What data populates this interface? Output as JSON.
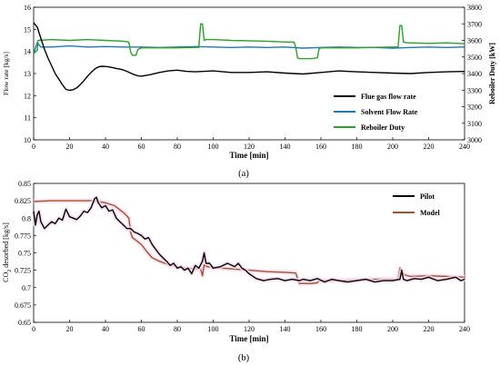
{
  "chart_data": [
    {
      "type": "line",
      "panel_label": "(a)",
      "xlabel": "Time [min]",
      "ylabel": "Flow rate [kg/s]",
      "y2label": "Reboiler Duty [kW]",
      "xlim": [
        0,
        240
      ],
      "ylim": [
        10,
        16
      ],
      "y2lim": [
        3000,
        3800
      ],
      "x_ticks": [
        0,
        20,
        40,
        60,
        80,
        100,
        120,
        140,
        160,
        180,
        200,
        220,
        240
      ],
      "y_ticks": [
        10,
        11,
        12,
        13,
        14,
        15,
        16
      ],
      "y2_ticks": [
        3000,
        3100,
        3200,
        3300,
        3400,
        3500,
        3600,
        3700,
        3800
      ],
      "legend_position": "right",
      "grid": false,
      "series": [
        {
          "name": "Flue gas flow rate",
          "color": "#000000",
          "axis": "left",
          "x": [
            0,
            2,
            4,
            6,
            8,
            10,
            12,
            14,
            16,
            18,
            20,
            22,
            24,
            26,
            28,
            30,
            32,
            34,
            36,
            38,
            40,
            42,
            44,
            46,
            48,
            50,
            52,
            54,
            56,
            58,
            60,
            65,
            70,
            75,
            80,
            85,
            90,
            100,
            110,
            120,
            130,
            140,
            150,
            160,
            170,
            180,
            190,
            200,
            210,
            220,
            230,
            240
          ],
          "y": [
            15.3,
            15.1,
            14.6,
            14.1,
            13.7,
            13.35,
            13.0,
            12.75,
            12.5,
            12.28,
            12.24,
            12.27,
            12.35,
            12.5,
            12.68,
            12.88,
            13.05,
            13.2,
            13.3,
            13.33,
            13.32,
            13.3,
            13.27,
            13.23,
            13.2,
            13.16,
            13.1,
            13.02,
            12.95,
            12.9,
            12.88,
            12.95,
            13.05,
            13.12,
            13.15,
            13.1,
            13.08,
            13.12,
            13.05,
            13.05,
            13.08,
            13.02,
            12.98,
            13.05,
            13.12,
            13.08,
            13.05,
            13.02,
            13.0,
            13.05,
            13.08,
            13.1
          ]
        },
        {
          "name": "Solvent Flow Rate",
          "color": "#1f77b4",
          "axis": "left",
          "x": [
            0,
            2,
            4,
            10,
            20,
            30,
            40,
            50,
            60,
            70,
            80,
            90,
            100,
            110,
            120,
            130,
            140,
            150,
            160,
            170,
            180,
            190,
            200,
            210,
            220,
            230,
            240
          ],
          "y": [
            13.9,
            14.4,
            14.2,
            14.2,
            14.25,
            14.2,
            14.22,
            14.2,
            14.2,
            14.18,
            14.2,
            14.22,
            14.2,
            14.18,
            14.2,
            14.18,
            14.2,
            14.15,
            14.18,
            14.2,
            14.18,
            14.18,
            14.15,
            14.18,
            14.2,
            14.18,
            14.2
          ]
        },
        {
          "name": "Reboiler Duty",
          "color": "#2ca02c",
          "axis": "right",
          "x": [
            0,
            2,
            2.5,
            10,
            20,
            30,
            40,
            50,
            53,
            54,
            55,
            57,
            58,
            60,
            70,
            80,
            90,
            92,
            93,
            94,
            95,
            96,
            100,
            110,
            120,
            130,
            140,
            145,
            146,
            147,
            148,
            155,
            158,
            159,
            160,
            170,
            180,
            190,
            200,
            203,
            204,
            205,
            206,
            208,
            210,
            220,
            230,
            240
          ],
          "y": [
            3520,
            3540,
            3600,
            3605,
            3600,
            3605,
            3600,
            3595,
            3590,
            3530,
            3510,
            3510,
            3545,
            3555,
            3555,
            3555,
            3558,
            3558,
            3700,
            3700,
            3600,
            3605,
            3605,
            3600,
            3598,
            3595,
            3590,
            3590,
            3560,
            3495,
            3490,
            3490,
            3495,
            3550,
            3555,
            3555,
            3555,
            3558,
            3560,
            3560,
            3690,
            3690,
            3590,
            3585,
            3585,
            3582,
            3585,
            3580
          ]
        }
      ]
    },
    {
      "type": "line",
      "panel_label": "(b)",
      "xlabel": "Time [min]",
      "ylabel_main": "CO",
      "ylabel_sub": "2",
      "ylabel_rest": " desorbed [kg/s]",
      "xlim": [
        0,
        240
      ],
      "ylim": [
        0.65,
        0.85
      ],
      "x_ticks": [
        0,
        20,
        40,
        60,
        80,
        100,
        120,
        140,
        160,
        180,
        200,
        220,
        240
      ],
      "y_ticks": [
        "0.65",
        "0.675",
        "0.7",
        "0.725",
        "0.75",
        "0.775",
        "0.8",
        "0.825",
        "0.85"
      ],
      "legend_position": "top-right",
      "grid": false,
      "series": [
        {
          "name": "Pilot",
          "color": "#000000",
          "x": [
            0,
            1,
            2,
            3,
            4,
            5,
            6,
            8,
            10,
            12,
            14,
            16,
            18,
            20,
            22,
            24,
            26,
            28,
            30,
            32,
            34,
            35,
            36,
            38,
            40,
            42,
            44,
            46,
            48,
            50,
            52,
            54,
            56,
            58,
            60,
            62,
            64,
            66,
            68,
            70,
            72,
            74,
            76,
            78,
            80,
            82,
            84,
            86,
            88,
            90,
            92,
            94,
            95,
            96,
            98,
            100,
            104,
            108,
            112,
            114,
            116,
            118,
            120,
            124,
            128,
            132,
            136,
            140,
            144,
            148,
            150,
            154,
            158,
            162,
            166,
            170,
            175,
            180,
            185,
            190,
            195,
            200,
            204,
            205,
            206,
            208,
            212,
            216,
            220,
            225,
            230,
            235,
            238,
            240
          ],
          "y": [
            0.81,
            0.79,
            0.805,
            0.81,
            0.795,
            0.79,
            0.785,
            0.79,
            0.795,
            0.792,
            0.8,
            0.797,
            0.813,
            0.802,
            0.8,
            0.798,
            0.803,
            0.81,
            0.808,
            0.815,
            0.828,
            0.83,
            0.822,
            0.815,
            0.818,
            0.81,
            0.812,
            0.8,
            0.795,
            0.79,
            0.785,
            0.785,
            0.78,
            0.778,
            0.775,
            0.77,
            0.772,
            0.762,
            0.755,
            0.748,
            0.743,
            0.738,
            0.732,
            0.735,
            0.728,
            0.73,
            0.725,
            0.728,
            0.72,
            0.732,
            0.728,
            0.738,
            0.75,
            0.735,
            0.735,
            0.728,
            0.73,
            0.735,
            0.73,
            0.735,
            0.728,
            0.725,
            0.72,
            0.713,
            0.71,
            0.712,
            0.713,
            0.71,
            0.712,
            0.71,
            0.712,
            0.71,
            0.713,
            0.708,
            0.712,
            0.71,
            0.708,
            0.71,
            0.712,
            0.708,
            0.71,
            0.71,
            0.712,
            0.725,
            0.712,
            0.71,
            0.713,
            0.712,
            0.715,
            0.71,
            0.712,
            0.715,
            0.71,
            0.712
          ]
        },
        {
          "name": "Model",
          "color": "#a0522d",
          "x": [
            0,
            10,
            20,
            30,
            33,
            36,
            40,
            45,
            48,
            50,
            52,
            53,
            54,
            55,
            57,
            60,
            63,
            66,
            70,
            75,
            80,
            85,
            90,
            93,
            94,
            95,
            96,
            97,
            100,
            110,
            120,
            130,
            140,
            146,
            147,
            148,
            150,
            155,
            158,
            159,
            160,
            170,
            180,
            190,
            200,
            203,
            204,
            205,
            207,
            210,
            220,
            230,
            240
          ],
          "y": [
            0.824,
            0.825,
            0.825,
            0.825,
            0.825,
            0.824,
            0.822,
            0.818,
            0.812,
            0.808,
            0.803,
            0.8,
            0.78,
            0.772,
            0.768,
            0.762,
            0.752,
            0.743,
            0.738,
            0.733,
            0.73,
            0.728,
            0.727,
            0.727,
            0.717,
            0.733,
            0.731,
            0.73,
            0.729,
            0.727,
            0.725,
            0.723,
            0.722,
            0.721,
            0.713,
            0.706,
            0.706,
            0.706,
            0.707,
            0.71,
            0.71,
            0.71,
            0.711,
            0.712,
            0.712,
            0.712,
            0.728,
            0.722,
            0.718,
            0.716,
            0.717,
            0.716,
            0.715
          ]
        }
      ]
    }
  ]
}
